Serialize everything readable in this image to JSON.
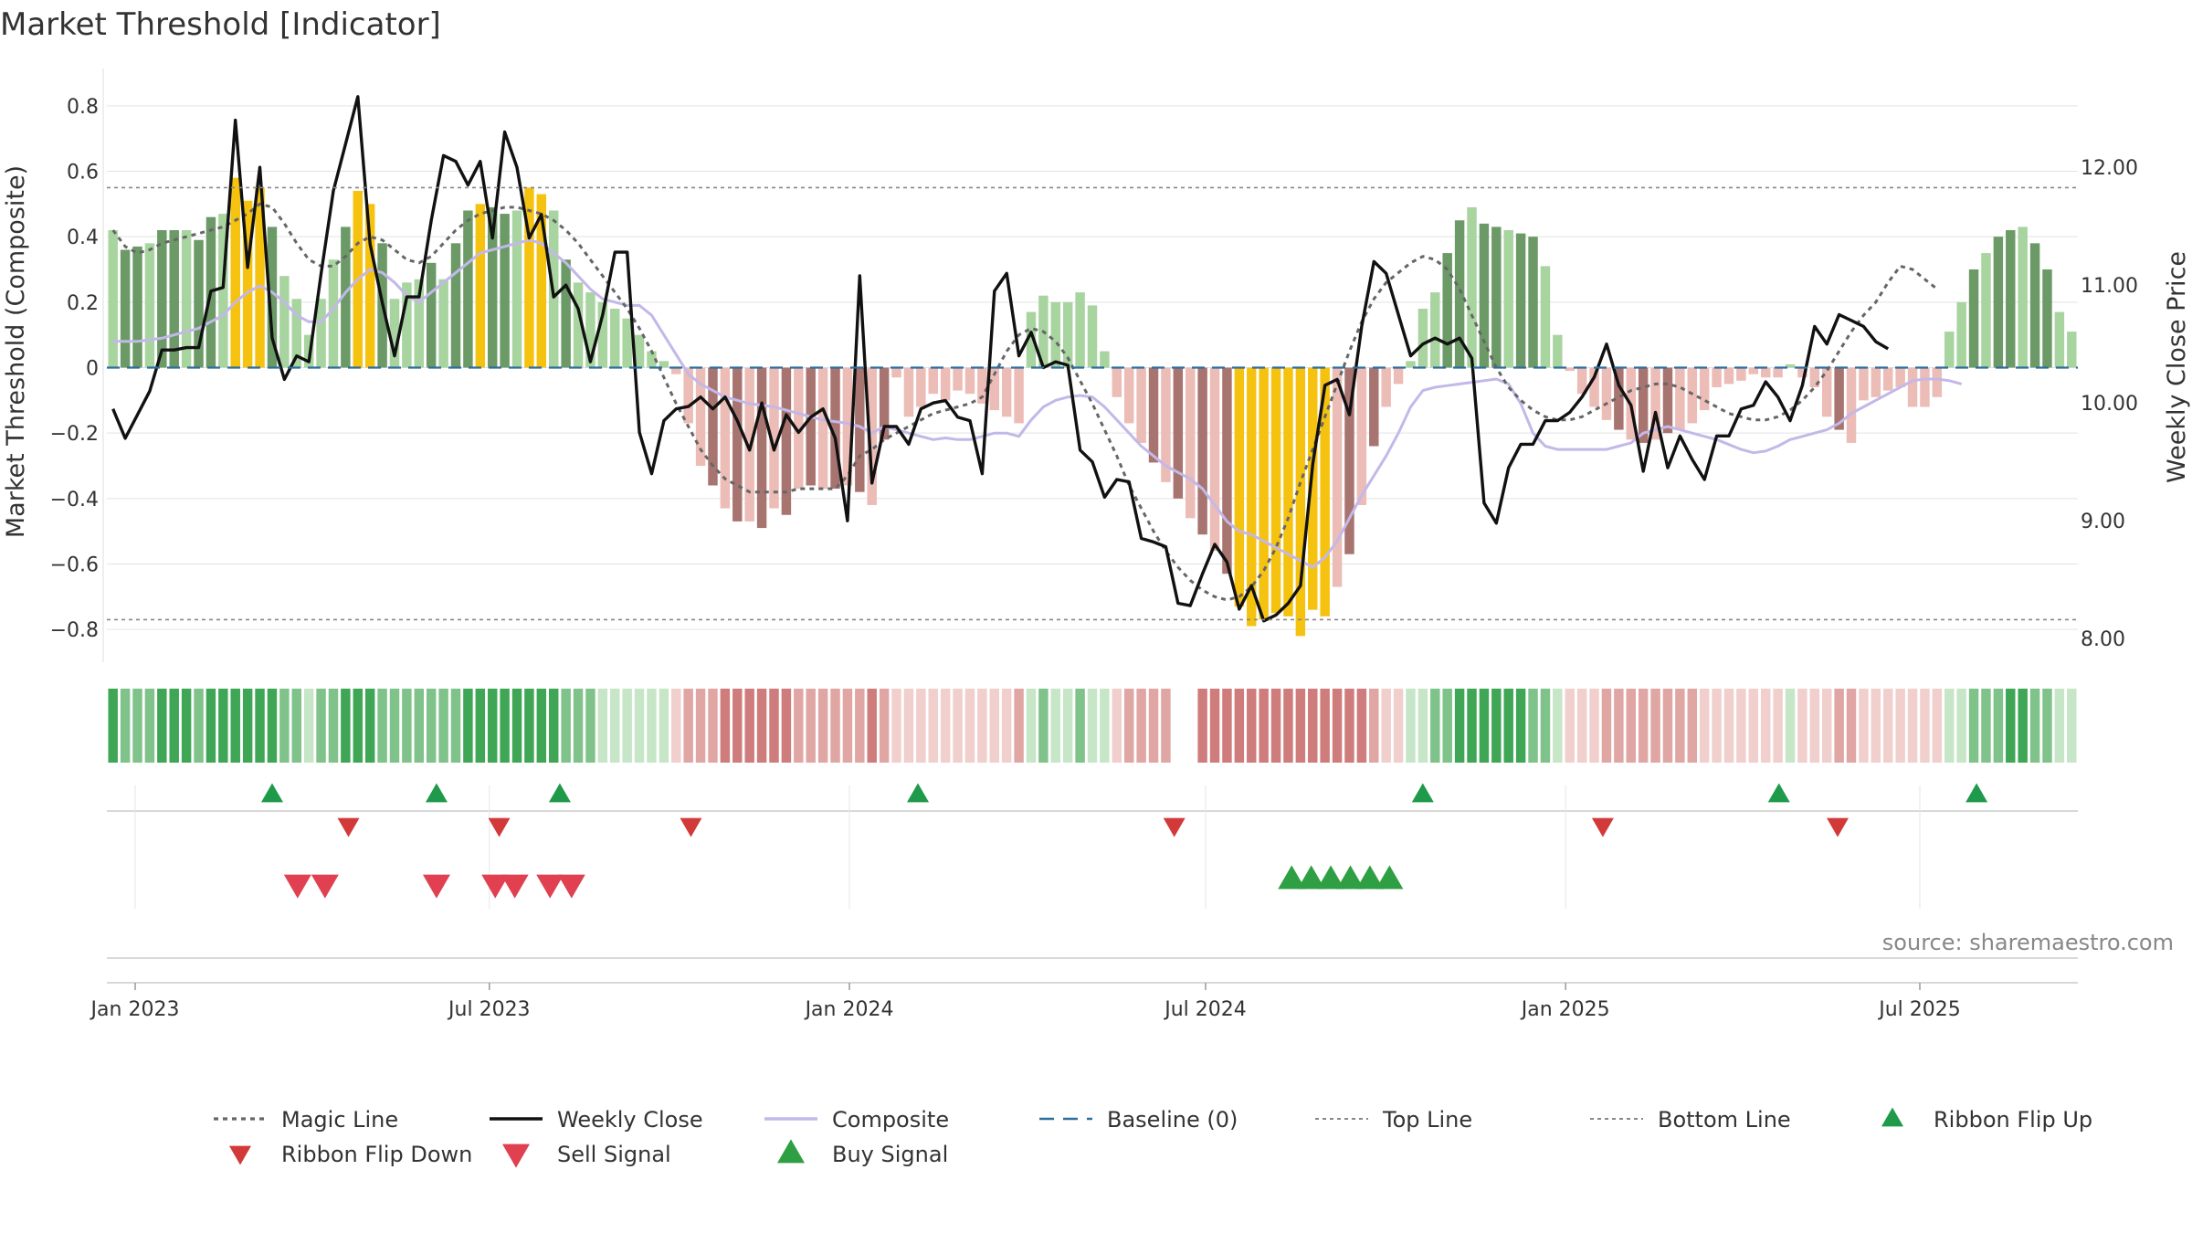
{
  "title": "Market Threshold [Indicator]",
  "source": "source: sharemaestro.com",
  "chart_data": {
    "type": "bar",
    "y_left_label": "Market Threshold (Composite)",
    "y_right_label": "Weekly Close Price",
    "ylim_left": [
      -0.9,
      0.9
    ],
    "ylim_right": [
      7.8,
      12.8
    ],
    "yticks_left": [
      -0.8,
      -0.6,
      -0.4,
      -0.2,
      0,
      0.2,
      0.4,
      0.6,
      0.8
    ],
    "yticks_left_labels": [
      "−0.8",
      "−0.6",
      "−0.4",
      "−0.2",
      "0",
      "0.2",
      "0.4",
      "0.6",
      "0.8"
    ],
    "yticks_right": [
      8.0,
      9.0,
      10.0,
      11.0,
      12.0
    ],
    "yticks_right_labels": [
      "8.00",
      "9.00",
      "10.00",
      "11.00",
      "12.00"
    ],
    "x_ticks": [
      "Jan 2023",
      "Jul 2023",
      "Jan 2024",
      "Jul 2024",
      "Jan 2025",
      "Jul 2025"
    ],
    "top_line": 0.55,
    "bottom_line": -0.77,
    "baseline": 0,
    "series": [
      {
        "name": "Composite Histogram",
        "values": [
          0.42,
          0.36,
          0.37,
          0.38,
          0.42,
          0.42,
          0.42,
          0.39,
          0.46,
          0.47,
          0.58,
          0.51,
          0.55,
          0.43,
          0.28,
          0.21,
          0.1,
          0.21,
          0.33,
          0.43,
          0.54,
          0.5,
          0.38,
          0.21,
          0.26,
          0.27,
          0.32,
          0.27,
          0.38,
          0.48,
          0.5,
          0.49,
          0.47,
          0.48,
          0.55,
          0.53,
          0.48,
          0.33,
          0.26,
          0.23,
          0.2,
          0.18,
          0.15,
          0.1,
          0.05,
          0.02,
          -0.02,
          -0.17,
          -0.3,
          -0.36,
          -0.43,
          -0.47,
          -0.47,
          -0.49,
          -0.43,
          -0.45,
          -0.37,
          -0.36,
          -0.37,
          -0.37,
          -0.36,
          -0.38,
          -0.42,
          -0.22,
          -0.03,
          -0.15,
          -0.12,
          -0.08,
          -0.1,
          -0.07,
          -0.08,
          -0.11,
          -0.13,
          -0.15,
          -0.17,
          0.17,
          0.22,
          0.2,
          0.2,
          0.23,
          0.19,
          0.05,
          -0.09,
          -0.17,
          -0.23,
          -0.29,
          -0.35,
          -0.4,
          -0.46,
          -0.51,
          -0.56,
          -0.63,
          -0.73,
          -0.79,
          -0.77,
          -0.75,
          -0.76,
          -0.82,
          -0.74,
          -0.76,
          -0.67,
          -0.57,
          -0.42,
          -0.24,
          -0.12,
          -0.05,
          0.02,
          0.18,
          0.23,
          0.35,
          0.45,
          0.49,
          0.44,
          0.43,
          0.42,
          0.41,
          0.4,
          0.31,
          0.1,
          -0.01,
          -0.08,
          -0.12,
          -0.16,
          -0.19,
          -0.22,
          -0.23,
          -0.22,
          -0.2,
          -0.19,
          -0.17,
          -0.13,
          -0.06,
          -0.05,
          -0.04,
          -0.02,
          -0.03,
          -0.03,
          0.01,
          -0.03,
          -0.06,
          -0.15,
          -0.19,
          -0.23,
          -0.1,
          -0.09,
          -0.07,
          -0.06,
          -0.12,
          -0.12,
          -0.09,
          0.11,
          0.2,
          0.3,
          0.35,
          0.4,
          0.42,
          0.43,
          0.38,
          0.3,
          0.17,
          0.11
        ]
      },
      {
        "name": "Weekly Close",
        "values": [
          9.95,
          9.7,
          9.9,
          10.1,
          10.45,
          10.45,
          10.47,
          10.47,
          10.95,
          10.98,
          12.4,
          11.15,
          12.0,
          10.55,
          10.2,
          10.4,
          10.35,
          11.1,
          11.8,
          12.2,
          12.6,
          11.35,
          10.85,
          10.4,
          10.9,
          10.9,
          11.55,
          12.1,
          12.05,
          11.85,
          12.05,
          11.4,
          12.3,
          12.0,
          11.4,
          11.6,
          10.9,
          11.0,
          10.8,
          10.35,
          10.75,
          11.28,
          11.28,
          9.75,
          9.4,
          9.85,
          9.95,
          9.97,
          10.05,
          9.95,
          10.05,
          9.85,
          9.6,
          10.0,
          9.6,
          9.9,
          9.75,
          9.88,
          9.95,
          9.7,
          9.0,
          11.08,
          9.32,
          9.8,
          9.8,
          9.65,
          9.95,
          10.0,
          10.02,
          9.88,
          9.85,
          9.4,
          10.95,
          11.1,
          10.4,
          10.6,
          10.3,
          10.35,
          10.32,
          9.6,
          9.5,
          9.2,
          9.35,
          9.33,
          8.85,
          8.82,
          8.78,
          8.3,
          8.28,
          8.55,
          8.8,
          8.65,
          8.25,
          8.45,
          8.15,
          8.2,
          8.3,
          8.45,
          9.48,
          10.15,
          10.2,
          9.9,
          10.65,
          11.2,
          11.1,
          10.75,
          10.4,
          10.5,
          10.55,
          10.5,
          10.55,
          10.38,
          9.15,
          8.98,
          9.45,
          9.65,
          9.65,
          9.85,
          9.85,
          9.92,
          10.05,
          10.22,
          10.5,
          10.15,
          9.98,
          9.42,
          9.92,
          9.45,
          9.72,
          9.52,
          9.35,
          9.72,
          9.72,
          9.95,
          9.98,
          10.18,
          10.05,
          9.85,
          10.15,
          10.65,
          10.5,
          10.75,
          10.7,
          10.65,
          10.52,
          10.46
        ]
      },
      {
        "name": "Composite",
        "values": [
          0.08,
          0.08,
          0.08,
          0.085,
          0.09,
          0.1,
          0.11,
          0.12,
          0.14,
          0.16,
          0.2,
          0.23,
          0.25,
          0.23,
          0.2,
          0.16,
          0.14,
          0.14,
          0.18,
          0.23,
          0.27,
          0.3,
          0.29,
          0.26,
          0.22,
          0.2,
          0.23,
          0.26,
          0.29,
          0.32,
          0.35,
          0.36,
          0.37,
          0.38,
          0.39,
          0.38,
          0.35,
          0.32,
          0.28,
          0.24,
          0.21,
          0.2,
          0.19,
          0.19,
          0.16,
          0.1,
          0.04,
          -0.02,
          -0.05,
          -0.07,
          -0.09,
          -0.1,
          -0.11,
          -0.115,
          -0.12,
          -0.13,
          -0.14,
          -0.15,
          -0.16,
          -0.165,
          -0.17,
          -0.18,
          -0.2,
          -0.18,
          -0.19,
          -0.2,
          -0.21,
          -0.22,
          -0.215,
          -0.22,
          -0.22,
          -0.21,
          -0.2,
          -0.2,
          -0.21,
          -0.16,
          -0.12,
          -0.1,
          -0.09,
          -0.085,
          -0.09,
          -0.12,
          -0.16,
          -0.2,
          -0.24,
          -0.27,
          -0.3,
          -0.32,
          -0.34,
          -0.37,
          -0.42,
          -0.47,
          -0.5,
          -0.51,
          -0.53,
          -0.55,
          -0.57,
          -0.59,
          -0.61,
          -0.58,
          -0.53,
          -0.46,
          -0.39,
          -0.33,
          -0.27,
          -0.2,
          -0.12,
          -0.07,
          -0.06,
          -0.055,
          -0.05,
          -0.045,
          -0.04,
          -0.035,
          -0.05,
          -0.11,
          -0.2,
          -0.24,
          -0.25,
          -0.25,
          -0.25,
          -0.25,
          -0.25,
          -0.24,
          -0.23,
          -0.2,
          -0.19,
          -0.18,
          -0.19,
          -0.2,
          -0.21,
          -0.22,
          -0.235,
          -0.25,
          -0.26,
          -0.255,
          -0.24,
          -0.22,
          -0.21,
          -0.2,
          -0.19,
          -0.17,
          -0.14,
          -0.12,
          -0.1,
          -0.08,
          -0.06,
          -0.04,
          -0.035,
          -0.035,
          -0.04,
          -0.05
        ]
      },
      {
        "name": "Magic Line",
        "values": [
          0.42,
          0.37,
          0.35,
          0.36,
          0.38,
          0.39,
          0.4,
          0.41,
          0.42,
          0.43,
          0.45,
          0.47,
          0.5,
          0.49,
          0.44,
          0.38,
          0.33,
          0.31,
          0.31,
          0.34,
          0.38,
          0.4,
          0.39,
          0.36,
          0.33,
          0.32,
          0.34,
          0.38,
          0.42,
          0.45,
          0.47,
          0.48,
          0.49,
          0.49,
          0.48,
          0.47,
          0.45,
          0.42,
          0.38,
          0.33,
          0.28,
          0.23,
          0.18,
          0.12,
          0.05,
          -0.03,
          -0.11,
          -0.18,
          -0.25,
          -0.3,
          -0.34,
          -0.36,
          -0.38,
          -0.38,
          -0.38,
          -0.38,
          -0.37,
          -0.37,
          -0.37,
          -0.37,
          -0.33,
          -0.27,
          -0.25,
          -0.22,
          -0.2,
          -0.18,
          -0.16,
          -0.14,
          -0.13,
          -0.12,
          -0.11,
          -0.09,
          -0.02,
          0.05,
          0.1,
          0.12,
          0.11,
          0.08,
          0.03,
          -0.04,
          -0.11,
          -0.19,
          -0.27,
          -0.36,
          -0.43,
          -0.5,
          -0.56,
          -0.61,
          -0.65,
          -0.68,
          -0.7,
          -0.71,
          -0.7,
          -0.67,
          -0.62,
          -0.55,
          -0.46,
          -0.35,
          -0.25,
          -0.15,
          -0.05,
          0.05,
          0.14,
          0.21,
          0.26,
          0.29,
          0.32,
          0.34,
          0.33,
          0.3,
          0.24,
          0.16,
          0.08,
          0.0,
          -0.06,
          -0.1,
          -0.13,
          -0.15,
          -0.16,
          -0.16,
          -0.15,
          -0.13,
          -0.11,
          -0.09,
          -0.07,
          -0.06,
          -0.05,
          -0.05,
          -0.06,
          -0.08,
          -0.1,
          -0.12,
          -0.14,
          -0.15,
          -0.16,
          -0.16,
          -0.15,
          -0.13,
          -0.1,
          -0.06,
          -0.01,
          0.05,
          0.11,
          0.16,
          0.2,
          0.26,
          0.31,
          0.3,
          0.27,
          0.24
        ]
      }
    ],
    "ribbon_flip_up_dates": [
      "2023-03-12",
      "2023-06-04",
      "2023-08-06",
      "2024-02-05",
      "2024-10-20",
      "2025-04-20",
      "2025-07-30"
    ],
    "ribbon_flip_down_dates": [
      "2023-04-20",
      "2023-07-06",
      "2023-10-12",
      "2024-06-15",
      "2025-01-20",
      "2025-05-20"
    ],
    "buy_signal_dates": [
      "2024-08-14",
      "2024-08-24",
      "2024-09-03",
      "2024-09-13",
      "2024-09-23",
      "2024-10-03"
    ],
    "sell_signal_dates": [
      "2023-03-25",
      "2023-04-08",
      "2023-06-04",
      "2023-07-04",
      "2023-07-14",
      "2023-08-01",
      "2023-08-12"
    ]
  },
  "legend": [
    {
      "label": "Magic Line",
      "kind": "dotted",
      "color": "#666666"
    },
    {
      "label": "Weekly Close",
      "kind": "solid",
      "color": "#111111"
    },
    {
      "label": "Composite",
      "kind": "solid",
      "color": "#c3b8e8"
    },
    {
      "label": "Baseline (0)",
      "kind": "dashed",
      "color": "#2c6e9e"
    },
    {
      "label": "Top Line",
      "kind": "dotted-thin",
      "color": "#888888"
    },
    {
      "label": "Bottom Line",
      "kind": "dotted-thin",
      "color": "#888888"
    },
    {
      "label": "Ribbon Flip Up",
      "kind": "triangle-up",
      "color": "#1e9a4a"
    },
    {
      "label": "Ribbon Flip Down",
      "kind": "triangle-down",
      "color": "#d23a3a"
    },
    {
      "label": "Sell Signal",
      "kind": "triangle-down-large",
      "color": "#e04050"
    },
    {
      "label": "Buy Signal",
      "kind": "triangle-up-large",
      "color": "#2ea043"
    }
  ],
  "colors": {
    "pos_dark": "#6b9a67",
    "pos_light": "#a8d4a0",
    "neg_dark": "#a87470",
    "neg_light": "#ecbcb6",
    "extreme": "#f5c20f",
    "grid": "#e3e3e3"
  }
}
